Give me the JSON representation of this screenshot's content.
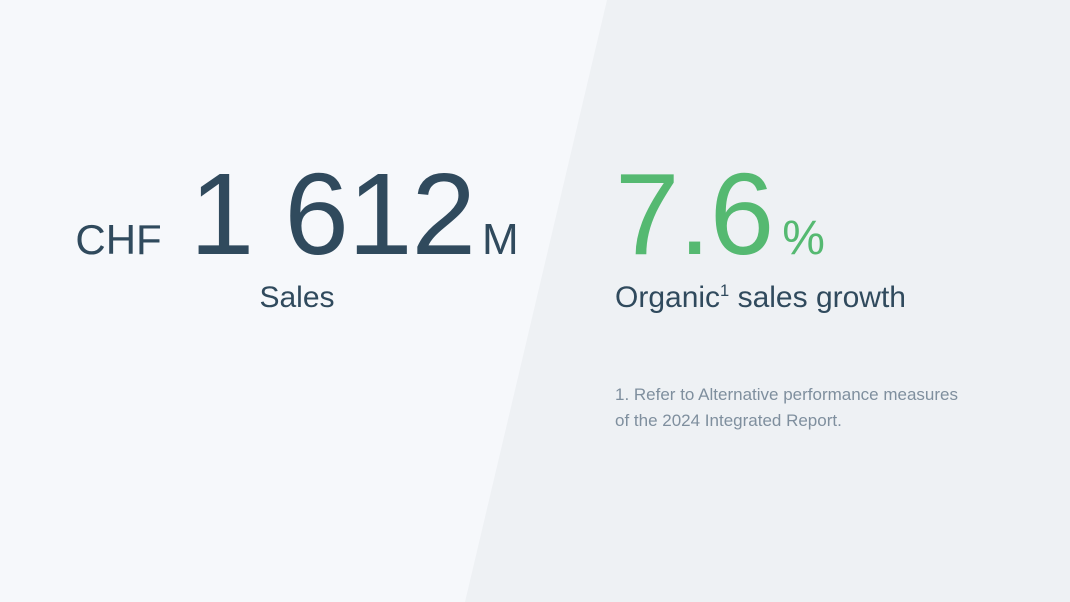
{
  "slide": {
    "sales_stat": {
      "currency": "CHF",
      "value": "1 612",
      "unit": "M",
      "label": "Sales"
    },
    "growth_stat": {
      "value": "7.6",
      "unit": "%",
      "label_text": "Organic",
      "label_superscript": "1",
      "label_rest": " sales growth"
    },
    "footnote": "1. Refer to Alternative performance measures of the 2024 Integrated Report."
  },
  "colors": {
    "navy_text": "#304a5d",
    "green_accent": "#55b971",
    "background_left": "#f6f8fb",
    "background_right": "#eef1f4",
    "footnote_gray": "#7f8f9e"
  }
}
